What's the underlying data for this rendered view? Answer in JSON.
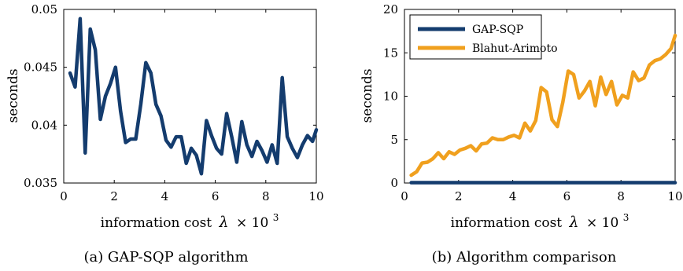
{
  "chart_data": [
    {
      "type": "line",
      "caption": "(a) GAP-SQP algorithm",
      "xlabel": "information cost",
      "xlabel_lambda": "λ",
      "xlabel_times": "× 10",
      "xlabel_exp": "3",
      "ylabel": "seconds",
      "xlim": [
        0,
        10
      ],
      "ylim": [
        0.035,
        0.05
      ],
      "xticks": [
        0,
        2,
        4,
        6,
        8,
        10
      ],
      "xtick_labels": [
        "0",
        "2",
        "4",
        "6",
        "8",
        "10"
      ],
      "yticks": [
        0.035,
        0.04,
        0.045,
        0.05
      ],
      "ytick_labels": [
        "0.035",
        "0.04",
        "0.045",
        "0.05"
      ],
      "series": [
        {
          "color": "#143c6e",
          "x": [
            0.25,
            0.45,
            0.65,
            0.85,
            1.05,
            1.25,
            1.45,
            1.65,
            1.85,
            2.05,
            2.25,
            2.45,
            2.65,
            2.85,
            3.05,
            3.25,
            3.45,
            3.65,
            3.85,
            4.05,
            4.25,
            4.45,
            4.65,
            4.85,
            5.05,
            5.25,
            5.45,
            5.65,
            5.85,
            6.05,
            6.25,
            6.45,
            6.65,
            6.85,
            7.05,
            7.25,
            7.45,
            7.65,
            7.85,
            8.05,
            8.25,
            8.45,
            8.65,
            8.85,
            9.05,
            9.25,
            9.45,
            9.65,
            9.85,
            10.0
          ],
          "y": [
            0.0445,
            0.0433,
            0.0492,
            0.0376,
            0.0483,
            0.0465,
            0.0405,
            0.0425,
            0.0436,
            0.045,
            0.0412,
            0.0385,
            0.0388,
            0.0388,
            0.0418,
            0.0454,
            0.0445,
            0.0418,
            0.0408,
            0.0387,
            0.0381,
            0.039,
            0.039,
            0.0367,
            0.038,
            0.0374,
            0.0358,
            0.0404,
            0.0391,
            0.038,
            0.0375,
            0.041,
            0.039,
            0.0368,
            0.0403,
            0.0383,
            0.0373,
            0.0386,
            0.0378,
            0.0368,
            0.0383,
            0.0367,
            0.0441,
            0.039,
            0.038,
            0.0372,
            0.0383,
            0.0391,
            0.0386,
            0.0396
          ]
        }
      ]
    },
    {
      "type": "line",
      "caption": "(b) Algorithm comparison",
      "xlabel": "information cost",
      "xlabel_lambda": "λ",
      "xlabel_times": "× 10",
      "xlabel_exp": "3",
      "ylabel": "seconds",
      "xlim": [
        0,
        10
      ],
      "ylim": [
        0,
        20
      ],
      "xticks": [
        0,
        2,
        4,
        6,
        8,
        10
      ],
      "xtick_labels": [
        "0",
        "2",
        "4",
        "6",
        "8",
        "10"
      ],
      "yticks": [
        0,
        5,
        10,
        15,
        20
      ],
      "ytick_labels": [
        "0",
        "5",
        "10",
        "15",
        "20"
      ],
      "legend_position": "top-left",
      "series": [
        {
          "name": "GAP-SQP",
          "color": "#143c6e",
          "x": [
            0.25,
            10.0
          ],
          "y": [
            0.04,
            0.04
          ]
        },
        {
          "name": "Blahut-Arimoto",
          "color": "#f0a01e",
          "x": [
            0.25,
            0.45,
            0.65,
            0.85,
            1.05,
            1.25,
            1.45,
            1.65,
            1.85,
            2.05,
            2.25,
            2.45,
            2.65,
            2.85,
            3.05,
            3.25,
            3.45,
            3.65,
            3.85,
            4.05,
            4.25,
            4.45,
            4.65,
            4.85,
            5.05,
            5.25,
            5.45,
            5.65,
            5.85,
            6.05,
            6.25,
            6.45,
            6.65,
            6.85,
            7.05,
            7.25,
            7.45,
            7.65,
            7.85,
            8.05,
            8.25,
            8.45,
            8.65,
            8.85,
            9.05,
            9.25,
            9.45,
            9.65,
            9.85,
            10.0
          ],
          "y": [
            0.9,
            1.3,
            2.3,
            2.4,
            2.8,
            3.5,
            2.8,
            3.6,
            3.3,
            3.8,
            4.0,
            4.3,
            3.7,
            4.5,
            4.6,
            5.2,
            5.0,
            5.0,
            5.3,
            5.5,
            5.2,
            6.9,
            6.0,
            7.2,
            11.0,
            10.5,
            7.3,
            6.5,
            9.3,
            12.9,
            12.5,
            9.8,
            10.6,
            11.7,
            8.9,
            12.2,
            10.2,
            11.7,
            9.0,
            10.1,
            9.8,
            12.8,
            11.8,
            12.1,
            13.6,
            14.1,
            14.3,
            14.8,
            15.5,
            17.0
          ]
        }
      ]
    }
  ]
}
